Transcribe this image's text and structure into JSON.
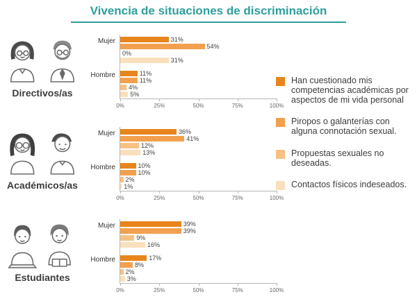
{
  "title": "Vivencia de situaciones de discriminación",
  "colors": {
    "title_accent": "#2d9f9c",
    "series": [
      "#e8851c",
      "#f2a04e",
      "#f6c183",
      "#fadfbc"
    ]
  },
  "chart_data": {
    "type": "bar",
    "orientation": "horizontal",
    "title": "Vivencia de situaciones de discriminación",
    "xlim": [
      0,
      100
    ],
    "x_ticks": [
      "0%",
      "25%",
      "50%",
      "75%",
      "100%"
    ],
    "grid": false,
    "legend_position": "right",
    "series": [
      {
        "name": "Han cuestionado mis competencias académicas por aspectos de mi vida personal",
        "color": "#e8851c"
      },
      {
        "name": "Piropos o galanterías con alguna connotación sexual.",
        "color": "#f2a04e"
      },
      {
        "name": "Propuestas sexuales no deseadas.",
        "color": "#f6c183"
      },
      {
        "name": "Contactos físicos indeseados.",
        "color": "#fadfbc"
      }
    ],
    "groups": [
      {
        "name": "Directivos/as",
        "rows": [
          {
            "label": "Mujer",
            "values": [
              31,
              54,
              0,
              31
            ]
          },
          {
            "label": "Hombre",
            "values": [
              11,
              11,
              4,
              5
            ]
          }
        ]
      },
      {
        "name": "Académicos/as",
        "rows": [
          {
            "label": "Mujer",
            "values": [
              36,
              41,
              12,
              13
            ]
          },
          {
            "label": "Hombre",
            "values": [
              10,
              10,
              2,
              1
            ]
          }
        ]
      },
      {
        "name": "Estudiantes",
        "rows": [
          {
            "label": "Mujer",
            "values": [
              39,
              39,
              9,
              16
            ]
          },
          {
            "label": "Hombre",
            "values": [
              17,
              8,
              2,
              3
            ]
          }
        ]
      }
    ]
  }
}
